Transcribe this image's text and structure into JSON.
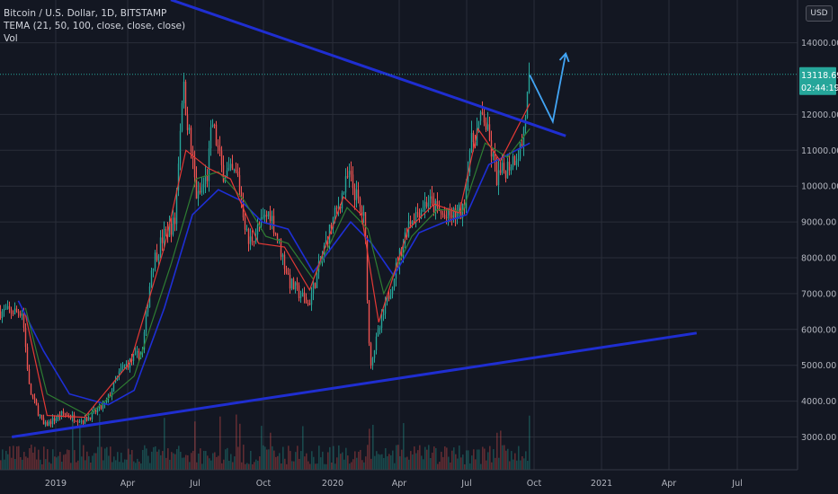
{
  "legend": {
    "title": "Bitcoin / U.S. Dollar, 1D, BITSTAMP",
    "indicator": "TEMA (21, 50, 100, close, close, close)",
    "volume": "Vol"
  },
  "currency_button": "USD",
  "colors": {
    "background": "#131722",
    "grid": "#2a2e39",
    "axis_text": "#b2b5be",
    "trendline": "#1f2ed1",
    "projection": "#42a5f5",
    "candle_up": "#26a69a",
    "candle_down": "#ef5350",
    "tema_fast": "#e53935",
    "tema_mid": "#2e7d32",
    "tema_slow": "#1e2fd6",
    "price_label_bg": "#26a69a"
  },
  "chart_data": {
    "type": "candlestick",
    "title": "Bitcoin / U.S. Dollar, 1D, BITSTAMP",
    "x_ticks": [
      "2019",
      "Apr",
      "Jul",
      "Oct",
      "2020",
      "Apr",
      "Jul",
      "Oct",
      "2021",
      "Apr",
      "Jul"
    ],
    "y_ticks": [
      "3000.00",
      "4000.00",
      "5000.00",
      "6000.00",
      "7000.00",
      "8000.00",
      "9000.00",
      "10000.00",
      "11000.00",
      "12000.00",
      "14000.00"
    ],
    "y_range": [
      2200,
      15200
    ],
    "last_price": "13118.69",
    "countdown": "02:44:19",
    "price_path": [
      [
        "2018-11-15",
        6500
      ],
      [
        "2018-11-25",
        4300
      ],
      [
        "2018-12-15",
        3300
      ],
      [
        "2019-01-10",
        3650
      ],
      [
        "2019-02-08",
        3450
      ],
      [
        "2019-03-10",
        3900
      ],
      [
        "2019-04-02",
        4900
      ],
      [
        "2019-05-01",
        5400
      ],
      [
        "2019-05-14",
        7800
      ],
      [
        "2019-05-30",
        8600
      ],
      [
        "2019-06-15",
        9000
      ],
      [
        "2019-06-26",
        12900
      ],
      [
        "2019-07-16",
        9600
      ],
      [
        "2019-07-30",
        10300
      ],
      [
        "2019-08-06",
        11800
      ],
      [
        "2019-08-20",
        10400
      ],
      [
        "2019-09-10",
        10300
      ],
      [
        "2019-09-25",
        8400
      ],
      [
        "2019-10-25",
        9300
      ],
      [
        "2019-11-22",
        7300
      ],
      [
        "2019-12-18",
        6700
      ],
      [
        "2020-01-15",
        8700
      ],
      [
        "2020-02-12",
        10300
      ],
      [
        "2020-03-05",
        9000
      ],
      [
        "2020-03-12",
        5000
      ],
      [
        "2020-04-05",
        6800
      ],
      [
        "2020-05-05",
        9000
      ],
      [
        "2020-06-01",
        9600
      ],
      [
        "2020-06-25",
        9100
      ],
      [
        "2020-07-20",
        9300
      ],
      [
        "2020-07-28",
        11000
      ],
      [
        "2020-08-17",
        12000
      ],
      [
        "2020-09-05",
        10200
      ],
      [
        "2020-09-25",
        10700
      ],
      [
        "2020-10-09",
        11100
      ],
      [
        "2020-10-21",
        13118
      ]
    ],
    "tema_21": [
      [
        "2018-11-20",
        6400
      ],
      [
        "2018-12-20",
        3600
      ],
      [
        "2019-02-10",
        3550
      ],
      [
        "2019-04-15",
        5100
      ],
      [
        "2019-06-01",
        8300
      ],
      [
        "2019-07-01",
        11000
      ],
      [
        "2019-08-01",
        10500
      ],
      [
        "2019-09-01",
        10200
      ],
      [
        "2019-10-10",
        8400
      ],
      [
        "2019-11-15",
        8300
      ],
      [
        "2019-12-20",
        7100
      ],
      [
        "2020-02-05",
        9700
      ],
      [
        "2020-03-01",
        9200
      ],
      [
        "2020-03-25",
        6200
      ],
      [
        "2020-05-05",
        8800
      ],
      [
        "2020-06-10",
        9500
      ],
      [
        "2020-07-15",
        9250
      ],
      [
        "2020-08-10",
        11600
      ],
      [
        "2020-09-10",
        10700
      ],
      [
        "2020-10-21",
        12300
      ]
    ],
    "tema_50": [
      [
        "2018-11-20",
        6600
      ],
      [
        "2018-12-20",
        4200
      ],
      [
        "2019-02-15",
        3600
      ],
      [
        "2019-04-20",
        4700
      ],
      [
        "2019-06-10",
        7800
      ],
      [
        "2019-07-15",
        10200
      ],
      [
        "2019-08-15",
        10400
      ],
      [
        "2019-09-20",
        9600
      ],
      [
        "2019-10-20",
        8600
      ],
      [
        "2019-11-20",
        8400
      ],
      [
        "2019-12-25",
        7400
      ],
      [
        "2020-02-10",
        9400
      ],
      [
        "2020-03-10",
        8800
      ],
      [
        "2020-04-01",
        7000
      ],
      [
        "2020-05-10",
        8600
      ],
      [
        "2020-06-15",
        9350
      ],
      [
        "2020-07-20",
        9300
      ],
      [
        "2020-08-20",
        11200
      ],
      [
        "2020-09-20",
        10800
      ],
      [
        "2020-10-21",
        11600
      ]
    ],
    "tema_100": [
      [
        "2018-11-10",
        6800
      ],
      [
        "2018-12-15",
        5400
      ],
      [
        "2019-01-20",
        4200
      ],
      [
        "2019-03-15",
        3900
      ],
      [
        "2019-04-20",
        4300
      ],
      [
        "2019-06-01",
        6600
      ],
      [
        "2019-07-10",
        9200
      ],
      [
        "2019-08-15",
        9900
      ],
      [
        "2019-09-15",
        9600
      ],
      [
        "2019-10-15",
        9000
      ],
      [
        "2019-11-20",
        8800
      ],
      [
        "2019-12-25",
        7600
      ],
      [
        "2020-02-15",
        9000
      ],
      [
        "2020-03-15",
        8400
      ],
      [
        "2020-04-15",
        7500
      ],
      [
        "2020-05-20",
        8700
      ],
      [
        "2020-06-25",
        9000
      ],
      [
        "2020-07-25",
        9200
      ],
      [
        "2020-08-25",
        10600
      ],
      [
        "2020-10-21",
        11200
      ]
    ],
    "trendlines": [
      {
        "name": "upper",
        "points": [
          [
            "2019-06-10",
            15200
          ],
          [
            "2020-12-10",
            11400
          ]
        ]
      },
      {
        "name": "lower",
        "points": [
          [
            "2018-11-01",
            3000
          ],
          [
            "2021-06-10",
            5900
          ]
        ]
      }
    ],
    "projection": [
      [
        "2020-10-21",
        13100
      ],
      [
        "2020-11-22",
        11800
      ],
      [
        "2020-12-10",
        13700
      ]
    ]
  }
}
